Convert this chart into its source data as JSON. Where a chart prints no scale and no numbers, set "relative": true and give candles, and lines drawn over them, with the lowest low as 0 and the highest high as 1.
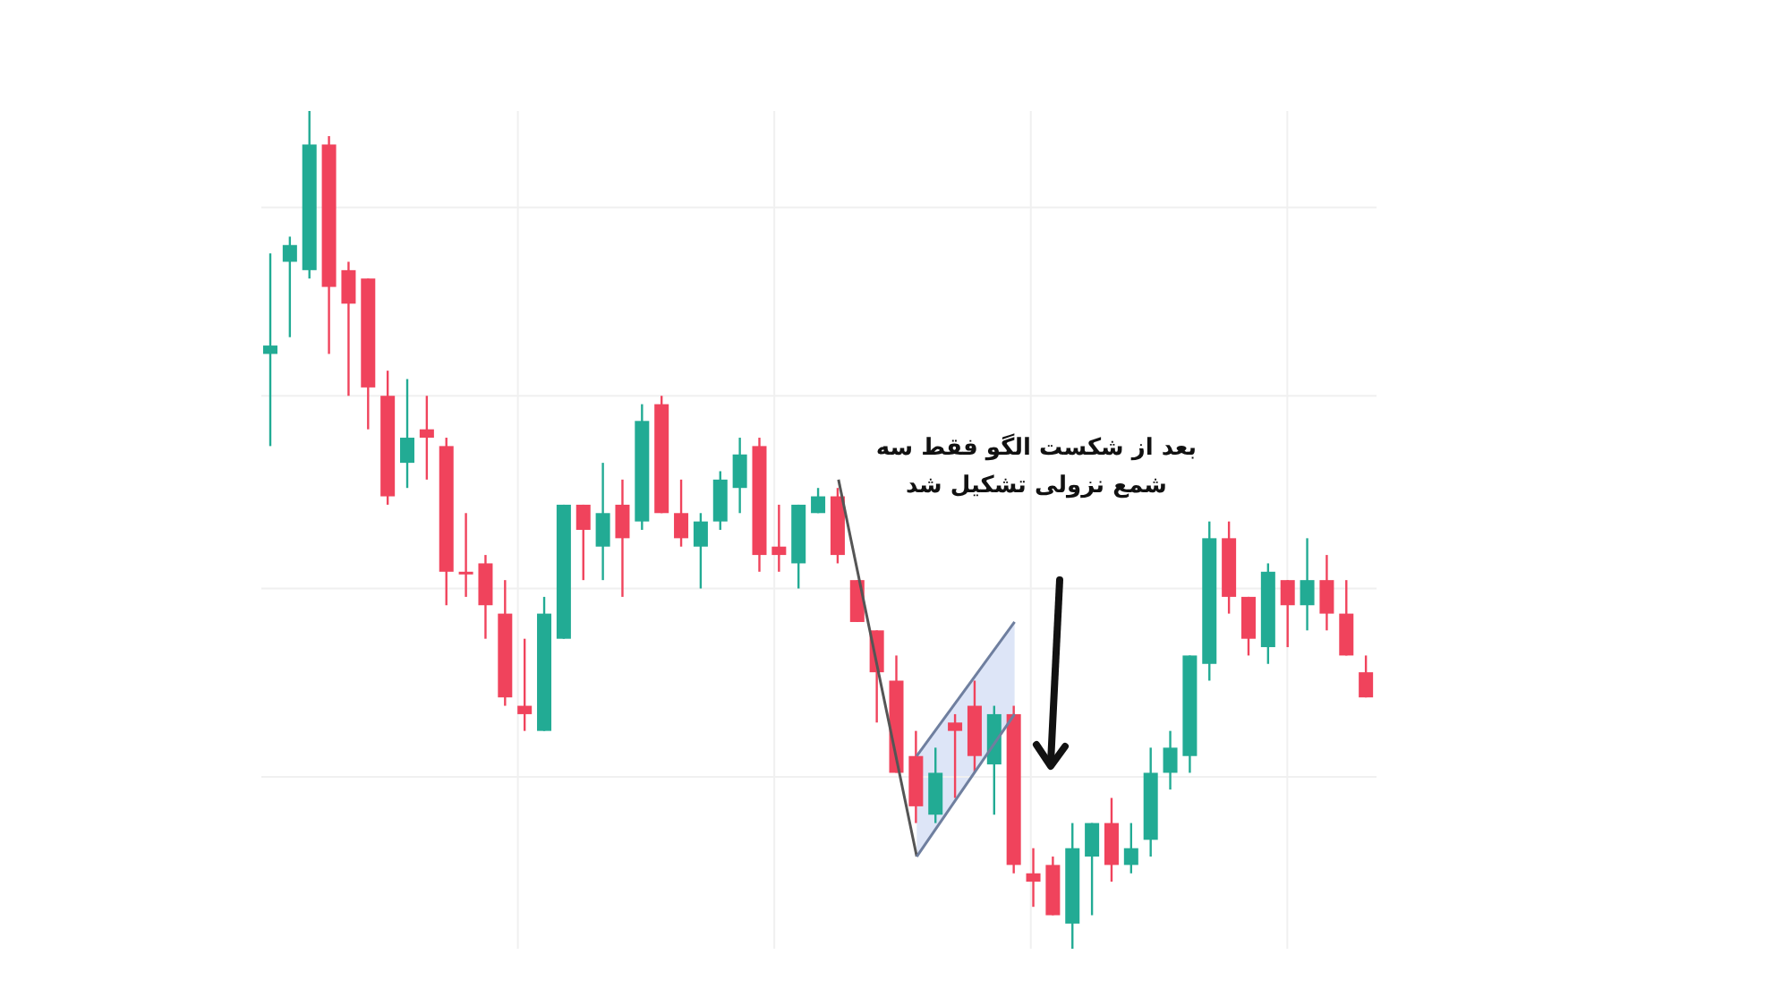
{
  "chart_data": {
    "type": "candlestick",
    "relative": true,
    "grid": true,
    "categories": [
      null,
      null,
      null,
      null,
      null,
      null,
      null,
      null,
      null,
      null,
      null,
      null,
      null,
      null,
      null,
      null,
      null,
      null,
      null,
      null,
      null,
      null,
      null,
      null,
      null,
      null,
      null,
      null,
      null,
      null,
      null,
      null,
      null,
      null,
      null,
      null,
      null,
      null,
      null,
      null,
      null,
      null,
      null,
      null,
      null,
      null,
      null,
      null,
      null,
      null,
      null,
      null,
      null,
      null,
      null,
      null,
      null
    ],
    "ohlc": [
      [
        0.71,
        0.83,
        0.6,
        0.72
      ],
      [
        0.82,
        0.85,
        0.73,
        0.84
      ],
      [
        0.81,
        1.0,
        0.8,
        0.96
      ],
      [
        0.96,
        0.97,
        0.71,
        0.79
      ],
      [
        0.81,
        0.82,
        0.66,
        0.77
      ],
      [
        0.8,
        0.8,
        0.62,
        0.67
      ],
      [
        0.66,
        0.69,
        0.53,
        0.54
      ],
      [
        0.58,
        0.68,
        0.55,
        0.61
      ],
      [
        0.62,
        0.66,
        0.56,
        0.61
      ],
      [
        0.6,
        0.61,
        0.41,
        0.45
      ],
      [
        0.45,
        0.52,
        0.42,
        0.45
      ],
      [
        0.46,
        0.47,
        0.37,
        0.41
      ],
      [
        0.4,
        0.44,
        0.29,
        0.3
      ],
      [
        0.29,
        0.37,
        0.26,
        0.28
      ],
      [
        0.26,
        0.42,
        0.26,
        0.4
      ],
      [
        0.37,
        0.53,
        0.37,
        0.53
      ],
      [
        0.53,
        0.53,
        0.44,
        0.5
      ],
      [
        0.48,
        0.58,
        0.44,
        0.52
      ],
      [
        0.53,
        0.56,
        0.42,
        0.49
      ],
      [
        0.51,
        0.65,
        0.5,
        0.63
      ],
      [
        0.65,
        0.66,
        0.52,
        0.52
      ],
      [
        0.52,
        0.56,
        0.48,
        0.49
      ],
      [
        0.48,
        0.52,
        0.43,
        0.51
      ],
      [
        0.51,
        0.57,
        0.5,
        0.56
      ],
      [
        0.55,
        0.61,
        0.52,
        0.59
      ],
      [
        0.6,
        0.61,
        0.45,
        0.47
      ],
      [
        0.48,
        0.53,
        0.45,
        0.47
      ],
      [
        0.46,
        0.53,
        0.43,
        0.53
      ],
      [
        0.52,
        0.55,
        0.52,
        0.54
      ],
      [
        0.54,
        0.55,
        0.46,
        0.47
      ],
      [
        0.44,
        0.44,
        0.39,
        0.39
      ],
      [
        0.38,
        0.38,
        0.27,
        0.33
      ],
      [
        0.32,
        0.35,
        0.21,
        0.21
      ],
      [
        0.23,
        0.26,
        0.15,
        0.17
      ],
      [
        0.16,
        0.24,
        0.15,
        0.21
      ],
      [
        0.27,
        0.28,
        0.18,
        0.26
      ],
      [
        0.29,
        0.32,
        0.21,
        0.23
      ],
      [
        0.22,
        0.29,
        0.16,
        0.28
      ],
      [
        0.28,
        0.29,
        0.09,
        0.1
      ],
      [
        0.09,
        0.12,
        0.05,
        0.08
      ],
      [
        0.1,
        0.11,
        0.04,
        0.04
      ],
      [
        0.03,
        0.15,
        0.0,
        0.12
      ],
      [
        0.11,
        0.15,
        0.04,
        0.15
      ],
      [
        0.15,
        0.18,
        0.08,
        0.1
      ],
      [
        0.1,
        0.15,
        0.09,
        0.12
      ],
      [
        0.13,
        0.24,
        0.11,
        0.21
      ],
      [
        0.21,
        0.26,
        0.19,
        0.24
      ],
      [
        0.23,
        0.35,
        0.21,
        0.35
      ],
      [
        0.34,
        0.51,
        0.32,
        0.49
      ],
      [
        0.49,
        0.51,
        0.4,
        0.42
      ],
      [
        0.42,
        0.42,
        0.35,
        0.37
      ],
      [
        0.36,
        0.46,
        0.34,
        0.45
      ],
      [
        0.44,
        0.44,
        0.36,
        0.41
      ],
      [
        0.41,
        0.49,
        0.38,
        0.44
      ],
      [
        0.44,
        0.47,
        0.38,
        0.4
      ],
      [
        0.4,
        0.44,
        0.35,
        0.35
      ],
      [
        0.33,
        0.35,
        0.3,
        0.3
      ]
    ],
    "colors": [
      "#22ab94",
      "#22ab94",
      "#22ab94",
      "#f0435c",
      "#f0435c",
      "#f0435c",
      "#f0435c",
      "#22ab94",
      "#f0435c",
      "#f0435c",
      "#f0435c",
      "#f0435c",
      "#f0435c",
      "#f0435c",
      "#22ab94",
      "#22ab94",
      "#f0435c",
      "#22ab94",
      "#f0435c",
      "#22ab94",
      "#f0435c",
      "#f0435c",
      "#22ab94",
      "#22ab94",
      "#22ab94",
      "#f0435c",
      "#f0435c",
      "#22ab94",
      "#22ab94",
      "#f0435c",
      "#f0435c",
      "#f0435c",
      "#f0435c",
      "#f0435c",
      "#22ab94",
      "#f0435c",
      "#f0435c",
      "#22ab94",
      "#f0435c",
      "#f0435c",
      "#f0435c",
      "#22ab94",
      "#22ab94",
      "#f0435c",
      "#22ab94",
      "#22ab94",
      "#22ab94",
      "#22ab94",
      "#22ab94",
      "#f0435c",
      "#f0435c",
      "#22ab94",
      "#f0435c",
      "#22ab94",
      "#f0435c",
      "#f0435c",
      "#f0435c"
    ],
    "series": [
      {
        "type": "line",
        "color": "#555555",
        "values": [
          null,
          null,
          null,
          null,
          null,
          null,
          null,
          null,
          null,
          null,
          null,
          null,
          null,
          null,
          null,
          null,
          null,
          null,
          null,
          null,
          null,
          null,
          null,
          null,
          null,
          null,
          null,
          null,
          null,
          0.56,
          null,
          null,
          null,
          0.11,
          null,
          null,
          null,
          null,
          null,
          null,
          null,
          null,
          null,
          null,
          null,
          null,
          null,
          null,
          null,
          null,
          null,
          null,
          null,
          null,
          null,
          null,
          null
        ]
      },
      {
        "type": "line",
        "color": "#6f7f9f",
        "values": [
          null,
          null,
          null,
          null,
          null,
          null,
          null,
          null,
          null,
          null,
          null,
          null,
          null,
          null,
          null,
          null,
          null,
          null,
          null,
          null,
          null,
          null,
          null,
          null,
          null,
          null,
          null,
          null,
          null,
          null,
          null,
          null,
          null,
          0.23,
          null,
          null,
          null,
          null,
          0.39,
          null,
          null,
          null,
          null,
          null,
          null,
          null,
          null,
          null,
          null,
          null,
          null,
          null,
          null,
          null,
          null,
          null,
          null
        ]
      },
      {
        "type": "line",
        "color": "#6f7f9f",
        "values": [
          null,
          null,
          null,
          null,
          null,
          null,
          null,
          null,
          null,
          null,
          null,
          null,
          null,
          null,
          null,
          null,
          null,
          null,
          null,
          null,
          null,
          null,
          null,
          null,
          null,
          null,
          null,
          null,
          null,
          null,
          null,
          null,
          null,
          0.11,
          null,
          null,
          null,
          null,
          0.28,
          null,
          null,
          null,
          null,
          null,
          null,
          null,
          null,
          null,
          null,
          null,
          null,
          null,
          null,
          null,
          null,
          null,
          null
        ]
      }
    ],
    "annotations": [
      "بعد از شکست الگو فقط سه شمع نزولی تشکیل شد"
    ]
  }
}
